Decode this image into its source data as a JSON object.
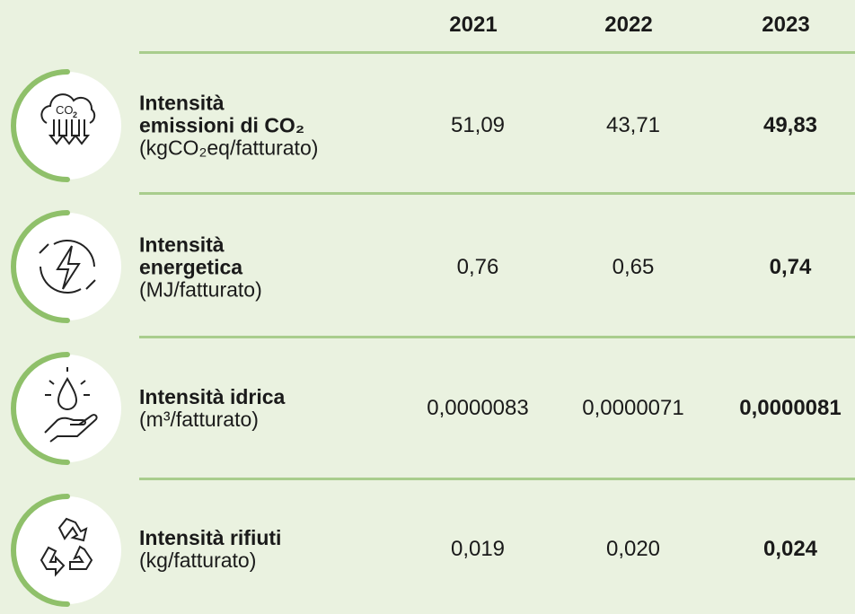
{
  "table": {
    "years": [
      "2021",
      "2022",
      "2023"
    ],
    "rows": [
      {
        "title_lines": [
          "Intensità",
          "emissioni di CO₂"
        ],
        "unit": "(kgCO₂eq/fatturato)",
        "values": [
          "51,09",
          "43,71",
          "49,83"
        ]
      },
      {
        "title_lines": [
          "Intensità",
          "energetica"
        ],
        "unit": "(MJ/fatturato)",
        "values": [
          "0,76",
          "0,65",
          "0,74"
        ]
      },
      {
        "title_lines": [
          "Intensità idrica"
        ],
        "unit": "(m³/fatturato)",
        "values": [
          "0,0000083",
          "0,0000071",
          "0,0000081"
        ]
      },
      {
        "title_lines": [
          "Intensità rifiuti"
        ],
        "unit": "(kg/fatturato)",
        "values": [
          "0,019",
          "0,020",
          "0,024"
        ]
      }
    ]
  }
}
